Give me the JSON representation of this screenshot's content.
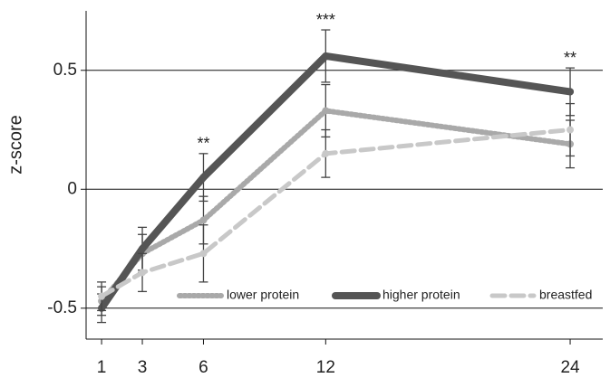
{
  "chart_data": {
    "type": "line",
    "y_label": "z-score",
    "x": [
      1,
      3,
      6,
      12,
      24
    ],
    "xlim": [
      0.24,
      25.6
    ],
    "xticks": [
      1,
      3,
      6,
      12,
      24
    ],
    "ylim": [
      -0.63,
      0.75
    ],
    "yticks": [
      -0.5,
      0.0,
      0.5
    ],
    "grid": true,
    "legend": "bottom",
    "series": [
      {
        "name": "lower protein",
        "color": "#a9a9a9",
        "style": "dotted",
        "values": [
          -0.47,
          -0.27,
          -0.13,
          0.33,
          0.19
        ],
        "errors": [
          0.06,
          0.08,
          0.1,
          0.11,
          0.1
        ]
      },
      {
        "name": "higher protein",
        "color": "#555555",
        "style": "solid",
        "values": [
          -0.5,
          -0.25,
          0.05,
          0.56,
          0.41
        ],
        "errors": [
          0.06,
          0.09,
          0.1,
          0.11,
          0.1
        ]
      },
      {
        "name": "breastfed",
        "color": "#c8c8c8",
        "style": "dashed",
        "values": [
          -0.45,
          -0.35,
          -0.27,
          0.15,
          0.25
        ],
        "errors": [
          0.06,
          0.08,
          0.12,
          0.1,
          0.11
        ]
      }
    ],
    "annotations": [
      {
        "x": 6,
        "text": "**"
      },
      {
        "x": 12,
        "text": "***"
      },
      {
        "x": 24,
        "text": "**"
      }
    ]
  }
}
